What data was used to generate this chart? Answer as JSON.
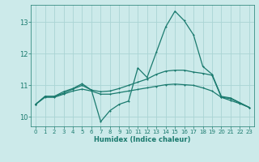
{
  "xlabel": "Humidex (Indice chaleur)",
  "background_color": "#cceaea",
  "grid_color": "#aad4d4",
  "line_color": "#1a7a6e",
  "xlim": [
    -0.5,
    23.5
  ],
  "ylim": [
    9.7,
    13.55
  ],
  "yticks": [
    10,
    11,
    12,
    13
  ],
  "xticks": [
    0,
    1,
    2,
    3,
    4,
    5,
    6,
    7,
    8,
    9,
    10,
    11,
    12,
    13,
    14,
    15,
    16,
    17,
    18,
    19,
    20,
    21,
    22,
    23
  ],
  "line1_x": [
    0,
    1,
    2,
    3,
    4,
    5,
    6,
    7,
    8,
    9,
    10,
    11,
    12,
    13,
    14,
    15,
    16,
    17,
    18,
    19,
    20,
    21,
    22,
    23
  ],
  "line1_y": [
    10.4,
    10.65,
    10.65,
    10.8,
    10.9,
    11.05,
    10.85,
    9.85,
    10.2,
    10.4,
    10.5,
    11.55,
    11.25,
    12.05,
    12.85,
    13.35,
    13.05,
    12.6,
    11.6,
    11.35,
    10.65,
    10.6,
    10.45,
    10.3
  ],
  "line2_x": [
    0,
    1,
    2,
    3,
    4,
    5,
    6,
    7,
    8,
    9,
    10,
    11,
    12,
    13,
    14,
    15,
    16,
    17,
    18,
    19,
    20,
    21,
    22,
    23
  ],
  "line2_y": [
    10.4,
    10.65,
    10.65,
    10.75,
    10.88,
    11.0,
    10.85,
    10.8,
    10.82,
    10.9,
    11.0,
    11.1,
    11.2,
    11.35,
    11.45,
    11.48,
    11.48,
    11.42,
    11.38,
    11.32,
    10.62,
    10.58,
    10.44,
    10.3
  ],
  "line3_x": [
    0,
    1,
    2,
    3,
    4,
    5,
    6,
    7,
    8,
    9,
    10,
    11,
    12,
    13,
    14,
    15,
    16,
    17,
    18,
    19,
    20,
    21,
    22,
    23
  ],
  "line3_y": [
    10.4,
    10.62,
    10.62,
    10.72,
    10.82,
    10.88,
    10.82,
    10.72,
    10.72,
    10.77,
    10.82,
    10.87,
    10.92,
    10.97,
    11.02,
    11.04,
    11.02,
    11.0,
    10.92,
    10.82,
    10.62,
    10.52,
    10.42,
    10.3
  ]
}
